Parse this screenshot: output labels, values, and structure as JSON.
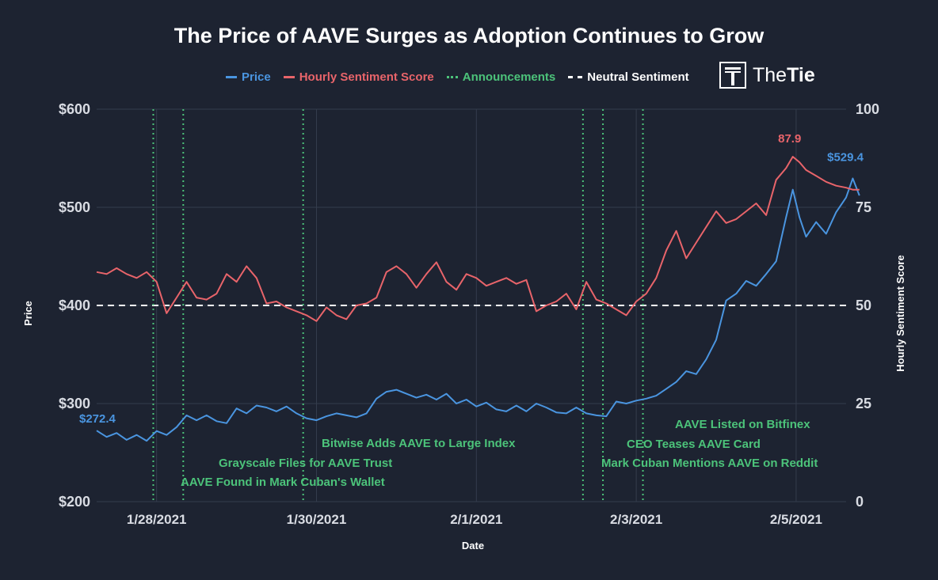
{
  "title": "The Price of AAVE Surges as Adoption Continues to Grow",
  "logo": {
    "icon": "thetie-logo-icon",
    "text_light": "The",
    "text_bold": "Tie"
  },
  "colors": {
    "background": "#1d2331",
    "grid": "#343c4d",
    "price": "#4a95e0",
    "sentiment": "#e8646a",
    "announcement": "#4cc37a",
    "neutral": "#ffffff"
  },
  "chart_data": {
    "type": "line",
    "xlabel": "Date",
    "ylabel": "Price",
    "y2label": "Hourly Sentiment Score",
    "xlim": [
      "2021-01-27T06:00",
      "2021-02-05T15:00"
    ],
    "ylim": [
      200,
      600
    ],
    "y2lim": [
      0,
      100
    ],
    "x_ticks": [
      "2021-01-28",
      "2021-01-30",
      "2021-02-01",
      "2021-02-03",
      "2021-02-05"
    ],
    "x_tick_labels": [
      "1/28/2021",
      "1/30/2021",
      "2/1/2021",
      "2/3/2021",
      "2/5/2021"
    ],
    "y_tick_labels": [
      "$200",
      "$300",
      "$400",
      "$500",
      "$600"
    ],
    "y_ticks": [
      200,
      300,
      400,
      500,
      600
    ],
    "y2_tick_labels": [
      "0",
      "25",
      "50",
      "75",
      "100"
    ],
    "y2_ticks": [
      0,
      25,
      50,
      75,
      100
    ],
    "grid": true,
    "legend": {
      "placement": "top",
      "entries": [
        {
          "label": "Price",
          "style": "solid",
          "color": "#4a95e0"
        },
        {
          "label": "Hourly Sentiment Score",
          "style": "solid",
          "color": "#e8646a"
        },
        {
          "label": "Announcements",
          "style": "dotted",
          "color": "#4cc37a"
        },
        {
          "label": "Neutral Sentiment",
          "style": "dashed",
          "color": "#ffffff"
        }
      ]
    },
    "series": [
      {
        "name": "Price",
        "axis": "left",
        "color": "#4a95e0",
        "points": [
          [
            "2021-01-27T06:00",
            272.4
          ],
          [
            "2021-01-27T09:00",
            266
          ],
          [
            "2021-01-27T12:00",
            270
          ],
          [
            "2021-01-27T15:00",
            263
          ],
          [
            "2021-01-27T18:00",
            268
          ],
          [
            "2021-01-27T21:00",
            262
          ],
          [
            "2021-01-28T00:00",
            272
          ],
          [
            "2021-01-28T03:00",
            268
          ],
          [
            "2021-01-28T06:00",
            276
          ],
          [
            "2021-01-28T09:00",
            288
          ],
          [
            "2021-01-28T12:00",
            283
          ],
          [
            "2021-01-28T15:00",
            288
          ],
          [
            "2021-01-28T18:00",
            282
          ],
          [
            "2021-01-28T21:00",
            280
          ],
          [
            "2021-01-29T00:00",
            295
          ],
          [
            "2021-01-29T03:00",
            290
          ],
          [
            "2021-01-29T06:00",
            298
          ],
          [
            "2021-01-29T09:00",
            296
          ],
          [
            "2021-01-29T12:00",
            292
          ],
          [
            "2021-01-29T15:00",
            297
          ],
          [
            "2021-01-29T18:00",
            290
          ],
          [
            "2021-01-29T21:00",
            285
          ],
          [
            "2021-01-30T00:00",
            283
          ],
          [
            "2021-01-30T03:00",
            287
          ],
          [
            "2021-01-30T06:00",
            290
          ],
          [
            "2021-01-30T09:00",
            288
          ],
          [
            "2021-01-30T12:00",
            286
          ],
          [
            "2021-01-30T15:00",
            290
          ],
          [
            "2021-01-30T18:00",
            305
          ],
          [
            "2021-01-30T21:00",
            312
          ],
          [
            "2021-01-31T00:00",
            314
          ],
          [
            "2021-01-31T03:00",
            310
          ],
          [
            "2021-01-31T06:00",
            306
          ],
          [
            "2021-01-31T09:00",
            309
          ],
          [
            "2021-01-31T12:00",
            304
          ],
          [
            "2021-01-31T15:00",
            310
          ],
          [
            "2021-01-31T18:00",
            300
          ],
          [
            "2021-01-31T21:00",
            304
          ],
          [
            "2021-02-01T00:00",
            297
          ],
          [
            "2021-02-01T03:00",
            301
          ],
          [
            "2021-02-01T06:00",
            294
          ],
          [
            "2021-02-01T09:00",
            292
          ],
          [
            "2021-02-01T12:00",
            298
          ],
          [
            "2021-02-01T15:00",
            292
          ],
          [
            "2021-02-01T18:00",
            300
          ],
          [
            "2021-02-01T21:00",
            296
          ],
          [
            "2021-02-02T00:00",
            291
          ],
          [
            "2021-02-02T03:00",
            290
          ],
          [
            "2021-02-02T06:00",
            296
          ],
          [
            "2021-02-02T09:00",
            290
          ],
          [
            "2021-02-02T12:00",
            288
          ],
          [
            "2021-02-02T15:00",
            287
          ],
          [
            "2021-02-02T18:00",
            302
          ],
          [
            "2021-02-02T21:00",
            300
          ],
          [
            "2021-02-03T00:00",
            303
          ],
          [
            "2021-02-03T03:00",
            305
          ],
          [
            "2021-02-03T06:00",
            308
          ],
          [
            "2021-02-03T09:00",
            315
          ],
          [
            "2021-02-03T12:00",
            322
          ],
          [
            "2021-02-03T15:00",
            333
          ],
          [
            "2021-02-03T18:00",
            330
          ],
          [
            "2021-02-03T21:00",
            345
          ],
          [
            "2021-02-04T00:00",
            365
          ],
          [
            "2021-02-04T03:00",
            405
          ],
          [
            "2021-02-04T06:00",
            412
          ],
          [
            "2021-02-04T09:00",
            425
          ],
          [
            "2021-02-04T12:00",
            420
          ],
          [
            "2021-02-04T15:00",
            432
          ],
          [
            "2021-02-04T18:00",
            445
          ],
          [
            "2021-02-04T21:00",
            490
          ],
          [
            "2021-02-04T23:00",
            518
          ],
          [
            "2021-02-05T01:00",
            490
          ],
          [
            "2021-02-05T03:00",
            470
          ],
          [
            "2021-02-05T06:00",
            485
          ],
          [
            "2021-02-05T09:00",
            473
          ],
          [
            "2021-02-05T12:00",
            495
          ],
          [
            "2021-02-05T15:00",
            510
          ],
          [
            "2021-02-05T17:00",
            529.4
          ],
          [
            "2021-02-05T19:00",
            512
          ]
        ]
      },
      {
        "name": "Hourly Sentiment Score",
        "axis": "right",
        "color": "#e8646a",
        "points": [
          [
            "2021-01-27T06:00",
            58.5
          ],
          [
            "2021-01-27T09:00",
            58
          ],
          [
            "2021-01-27T12:00",
            59.5
          ],
          [
            "2021-01-27T15:00",
            58
          ],
          [
            "2021-01-27T18:00",
            57
          ],
          [
            "2021-01-27T21:00",
            58.5
          ],
          [
            "2021-01-28T00:00",
            56
          ],
          [
            "2021-01-28T03:00",
            48
          ],
          [
            "2021-01-28T06:00",
            52
          ],
          [
            "2021-01-28T09:00",
            56
          ],
          [
            "2021-01-28T12:00",
            52
          ],
          [
            "2021-01-28T15:00",
            51.5
          ],
          [
            "2021-01-28T18:00",
            53
          ],
          [
            "2021-01-28T21:00",
            58
          ],
          [
            "2021-01-29T00:00",
            56
          ],
          [
            "2021-01-29T03:00",
            60
          ],
          [
            "2021-01-29T06:00",
            57
          ],
          [
            "2021-01-29T09:00",
            50.5
          ],
          [
            "2021-01-29T12:00",
            51
          ],
          [
            "2021-01-29T15:00",
            49.5
          ],
          [
            "2021-01-29T18:00",
            48.5
          ],
          [
            "2021-01-29T21:00",
            47.5
          ],
          [
            "2021-01-30T00:00",
            46
          ],
          [
            "2021-01-30T03:00",
            49.5
          ],
          [
            "2021-01-30T06:00",
            47.5
          ],
          [
            "2021-01-30T09:00",
            46.5
          ],
          [
            "2021-01-30T12:00",
            50
          ],
          [
            "2021-01-30T15:00",
            50.5
          ],
          [
            "2021-01-30T18:00",
            52
          ],
          [
            "2021-01-30T21:00",
            58.5
          ],
          [
            "2021-01-31T00:00",
            60
          ],
          [
            "2021-01-31T03:00",
            58
          ],
          [
            "2021-01-31T06:00",
            54.5
          ],
          [
            "2021-01-31T09:00",
            58
          ],
          [
            "2021-01-31T12:00",
            61
          ],
          [
            "2021-01-31T15:00",
            56
          ],
          [
            "2021-01-31T18:00",
            54
          ],
          [
            "2021-01-31T21:00",
            58
          ],
          [
            "2021-02-01T00:00",
            57
          ],
          [
            "2021-02-01T03:00",
            55
          ],
          [
            "2021-02-01T06:00",
            56
          ],
          [
            "2021-02-01T09:00",
            57
          ],
          [
            "2021-02-01T12:00",
            55.5
          ],
          [
            "2021-02-01T15:00",
            56.5
          ],
          [
            "2021-02-01T18:00",
            48.5
          ],
          [
            "2021-02-01T21:00",
            50
          ],
          [
            "2021-02-02T00:00",
            51
          ],
          [
            "2021-02-02T03:00",
            53
          ],
          [
            "2021-02-02T06:00",
            49
          ],
          [
            "2021-02-02T09:00",
            56
          ],
          [
            "2021-02-02T12:00",
            51.5
          ],
          [
            "2021-02-02T15:00",
            50.5
          ],
          [
            "2021-02-02T18:00",
            49
          ],
          [
            "2021-02-02T21:00",
            47.5
          ],
          [
            "2021-02-03T00:00",
            51
          ],
          [
            "2021-02-03T03:00",
            53
          ],
          [
            "2021-02-03T06:00",
            57
          ],
          [
            "2021-02-03T09:00",
            64
          ],
          [
            "2021-02-03T12:00",
            69
          ],
          [
            "2021-02-03T15:00",
            62
          ],
          [
            "2021-02-03T18:00",
            66
          ],
          [
            "2021-02-03T21:00",
            70
          ],
          [
            "2021-02-04T00:00",
            74
          ],
          [
            "2021-02-04T03:00",
            71
          ],
          [
            "2021-02-04T06:00",
            72
          ],
          [
            "2021-02-04T09:00",
            74
          ],
          [
            "2021-02-04T12:00",
            76
          ],
          [
            "2021-02-04T15:00",
            73
          ],
          [
            "2021-02-04T18:00",
            82
          ],
          [
            "2021-02-04T21:00",
            85
          ],
          [
            "2021-02-04T23:00",
            87.9
          ],
          [
            "2021-02-05T01:00",
            86.5
          ],
          [
            "2021-02-05T03:00",
            84.5
          ],
          [
            "2021-02-05T06:00",
            83
          ],
          [
            "2021-02-05T09:00",
            81.5
          ],
          [
            "2021-02-05T12:00",
            80.5
          ],
          [
            "2021-02-05T15:00",
            80
          ],
          [
            "2021-02-05T17:00",
            79.5
          ],
          [
            "2021-02-05T19:00",
            79.5
          ]
        ]
      }
    ],
    "data_labels": [
      {
        "text": "$272.4",
        "series": "Price",
        "x": "2021-01-27T06:00",
        "y": 272.4,
        "anchor": "above"
      },
      {
        "text": "87.9",
        "series": "Hourly Sentiment Score",
        "x": "2021-02-04T23:00",
        "y": 87.9,
        "anchor": "above"
      },
      {
        "text": "$529.4",
        "series": "Price",
        "x": "2021-02-05T17:00",
        "y": 529.4,
        "anchor": "above"
      }
    ],
    "neutral_line": {
      "label": "Neutral Sentiment",
      "y2": 50
    },
    "annotations": [
      {
        "date": "2021-01-27T23:00",
        "label": "AAVE Found in Mark Cuban's Wallet",
        "label_y": 220
      },
      {
        "date": "2021-01-28T08:00",
        "label": "Grayscale Files for AAVE Trust",
        "label_y": 240
      },
      {
        "date": "2021-01-29T20:00",
        "label": "Bitwise Adds AAVE to Large Index",
        "label_y": 260
      },
      {
        "date": "2021-02-02T08:00",
        "label": "Mark Cuban Mentions AAVE on Reddit",
        "label_y": 240
      },
      {
        "date": "2021-02-02T14:00",
        "label": "CEO Teases AAVE Card",
        "label_y": 260
      },
      {
        "date": "2021-02-03T02:00",
        "label": "AAVE Listed on Bitfinex",
        "label_y": 280
      }
    ]
  }
}
